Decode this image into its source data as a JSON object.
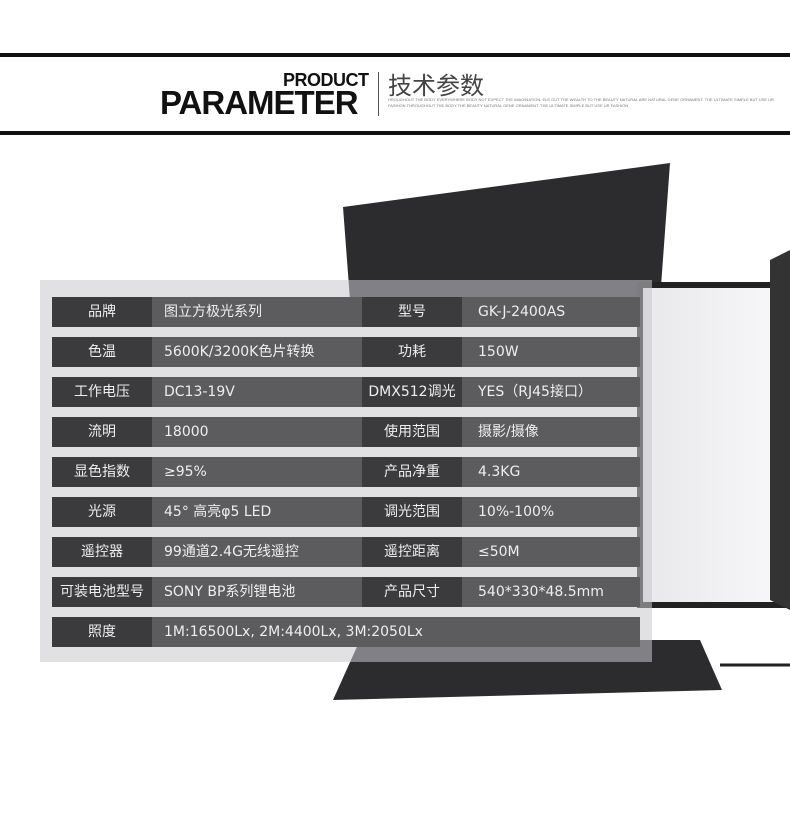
{
  "header": {
    "title_en_small": "PRODUCT",
    "title_en_large": "PARAMETER",
    "title_cn": "技术参数",
    "tagline": "HROUGHOUT THE BODY EVERYWHERE BODY NOT EXPECT THE IMAGINATION. ELE GUT THE WEALTH TO THE BEAUTY NATURAL ARE NATURAL GENE ORNAMENT. THE ULTIMATE SIMPLE BUT USE UR FASHION THROUGHOUT THE BODY THE BEAUTY NATURAL GENE ORNAMENT. THE ULTIMATE SIMPLE BUT USE UR FASHION"
  },
  "specs": [
    {
      "label": "品牌",
      "value": "图立方极光系列",
      "label2": "型号",
      "value2": "GK-J-2400AS"
    },
    {
      "label": "色温",
      "value": "5600K/3200K色片转换",
      "label2": "功耗",
      "value2": "150W"
    },
    {
      "label": "工作电压",
      "value": "DC13-19V",
      "label2": "DMX512调光",
      "value2": "YES（RJ45接口）"
    },
    {
      "label": "流明",
      "value": "18000",
      "label2": "使用范围",
      "value2": "摄影/摄像"
    },
    {
      "label": "显色指数",
      "value": "≥95%",
      "label2": "产品净重",
      "value2": "4.3KG"
    },
    {
      "label": "光源",
      "value": "45° 高亮φ5 LED",
      "label2": "调光范围",
      "value2": "10%-100%"
    },
    {
      "label": "遥控器",
      "value": "99通道2.4G无线遥控",
      "label2": "遥控距离",
      "value2": "≤50M"
    },
    {
      "label": "可装电池型号",
      "value": "SONY BP系列锂电池",
      "label2": "产品尺寸",
      "value2": "540*330*48.5mm"
    },
    {
      "label": "照度",
      "value": "1M:16500Lx, 2M:4400Lx,  3M:2050Lx"
    }
  ]
}
